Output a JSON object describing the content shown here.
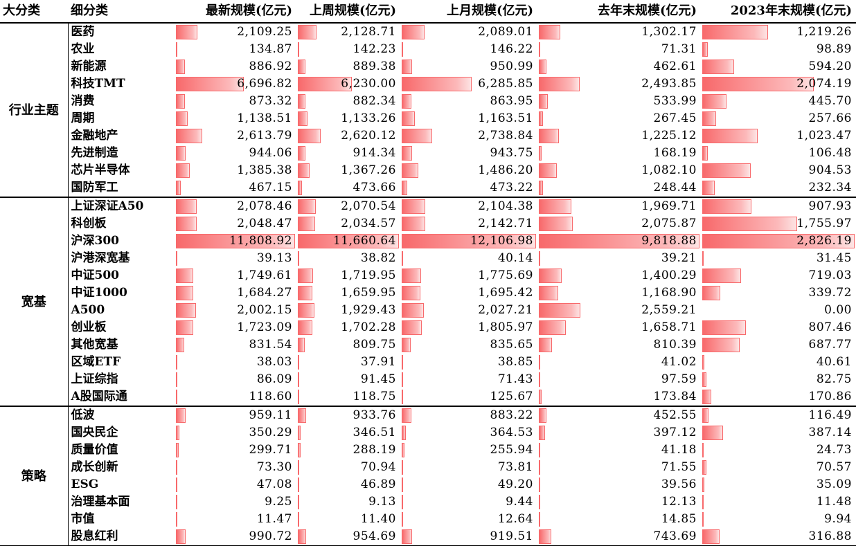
{
  "headers": [
    "大分类",
    "细分类",
    "最新规模(亿元)",
    "上周规模(亿元)",
    "上月规模(亿元)",
    "去年末规模(亿元)",
    "2023年末规模(亿元)"
  ],
  "bar_color": "#f8696b",
  "groups": [
    {
      "name": "行业主题",
      "rows": [
        {
          "name": "医药",
          "values": [
            "2,109.25",
            "2,128.71",
            "2,089.01",
            "1,302.17",
            "1,219.26"
          ]
        },
        {
          "name": "农业",
          "values": [
            "134.87",
            "142.23",
            "146.22",
            "71.31",
            "98.89"
          ]
        },
        {
          "name": "新能源",
          "values": [
            "886.92",
            "889.38",
            "950.99",
            "462.61",
            "594.20"
          ]
        },
        {
          "name": "科技TMT",
          "values": [
            "6,696.82",
            "6,230.00",
            "6,285.85",
            "2,493.85",
            "2,074.19"
          ]
        },
        {
          "name": "消费",
          "values": [
            "873.32",
            "882.34",
            "863.95",
            "533.99",
            "445.70"
          ]
        },
        {
          "name": "周期",
          "values": [
            "1,138.51",
            "1,133.26",
            "1,163.51",
            "267.45",
            "257.66"
          ]
        },
        {
          "name": "金融地产",
          "values": [
            "2,613.79",
            "2,620.12",
            "2,738.84",
            "1,225.12",
            "1,023.47"
          ]
        },
        {
          "name": "先进制造",
          "values": [
            "944.06",
            "914.34",
            "943.75",
            "168.19",
            "106.48"
          ]
        },
        {
          "name": "芯片半导体",
          "values": [
            "1,385.38",
            "1,367.26",
            "1,486.20",
            "1,082.10",
            "904.53"
          ]
        },
        {
          "name": "国防军工",
          "values": [
            "467.15",
            "473.66",
            "473.22",
            "248.44",
            "232.34"
          ]
        }
      ]
    },
    {
      "name": "宽基",
      "rows": [
        {
          "name": "上证深证A50",
          "values": [
            "2,078.46",
            "2,070.54",
            "2,104.38",
            "1,969.71",
            "907.93"
          ]
        },
        {
          "name": "科创板",
          "values": [
            "2,048.47",
            "2,034.57",
            "2,142.71",
            "2,075.87",
            "1,755.97"
          ]
        },
        {
          "name": "沪深300",
          "values": [
            "11,808.92",
            "11,660.64",
            "12,106.98",
            "9,818.88",
            "2,826.19"
          ]
        },
        {
          "name": "沪港深宽基",
          "values": [
            "39.13",
            "38.82",
            "40.14",
            "39.21",
            "31.45"
          ]
        },
        {
          "name": "中证500",
          "values": [
            "1,749.61",
            "1,719.95",
            "1,775.69",
            "1,400.29",
            "719.03"
          ]
        },
        {
          "name": "中证1000",
          "values": [
            "1,684.27",
            "1,659.95",
            "1,695.42",
            "1,168.90",
            "339.72"
          ]
        },
        {
          "name": "A500",
          "values": [
            "2,002.15",
            "1,929.43",
            "2,027.21",
            "2,559.21",
            "0.00"
          ]
        },
        {
          "name": "创业板",
          "values": [
            "1,723.09",
            "1,702.28",
            "1,805.97",
            "1,658.71",
            "807.46"
          ]
        },
        {
          "name": "其他宽基",
          "values": [
            "831.54",
            "809.75",
            "835.65",
            "810.39",
            "687.77"
          ]
        },
        {
          "name": "区域ETF",
          "values": [
            "38.03",
            "37.91",
            "38.85",
            "41.02",
            "40.61"
          ]
        },
        {
          "name": "上证综指",
          "values": [
            "86.09",
            "91.45",
            "71.43",
            "97.59",
            "82.75"
          ]
        },
        {
          "name": "A股国际通",
          "values": [
            "118.60",
            "118.75",
            "125.67",
            "173.84",
            "170.86"
          ]
        }
      ]
    },
    {
      "name": "策略",
      "rows": [
        {
          "name": "低波",
          "values": [
            "959.11",
            "933.76",
            "883.22",
            "452.55",
            "116.49"
          ]
        },
        {
          "name": "国央民企",
          "values": [
            "350.29",
            "346.51",
            "364.53",
            "397.12",
            "387.14"
          ]
        },
        {
          "name": "质量价值",
          "values": [
            "299.71",
            "288.19",
            "255.94",
            "41.18",
            "24.73"
          ]
        },
        {
          "name": "成长创新",
          "values": [
            "73.30",
            "70.94",
            "73.81",
            "71.55",
            "70.57"
          ]
        },
        {
          "name": "ESG",
          "values": [
            "47.08",
            "46.89",
            "49.20",
            "39.56",
            "35.09"
          ]
        },
        {
          "name": "治理基本面",
          "values": [
            "9.25",
            "9.13",
            "9.44",
            "12.13",
            "11.48"
          ]
        },
        {
          "name": "市值",
          "values": [
            "11.47",
            "11.40",
            "12.64",
            "14.85",
            "9.94"
          ]
        },
        {
          "name": "股息红利",
          "values": [
            "990.72",
            "954.69",
            "919.51",
            "743.69",
            "316.88"
          ]
        }
      ]
    }
  ]
}
